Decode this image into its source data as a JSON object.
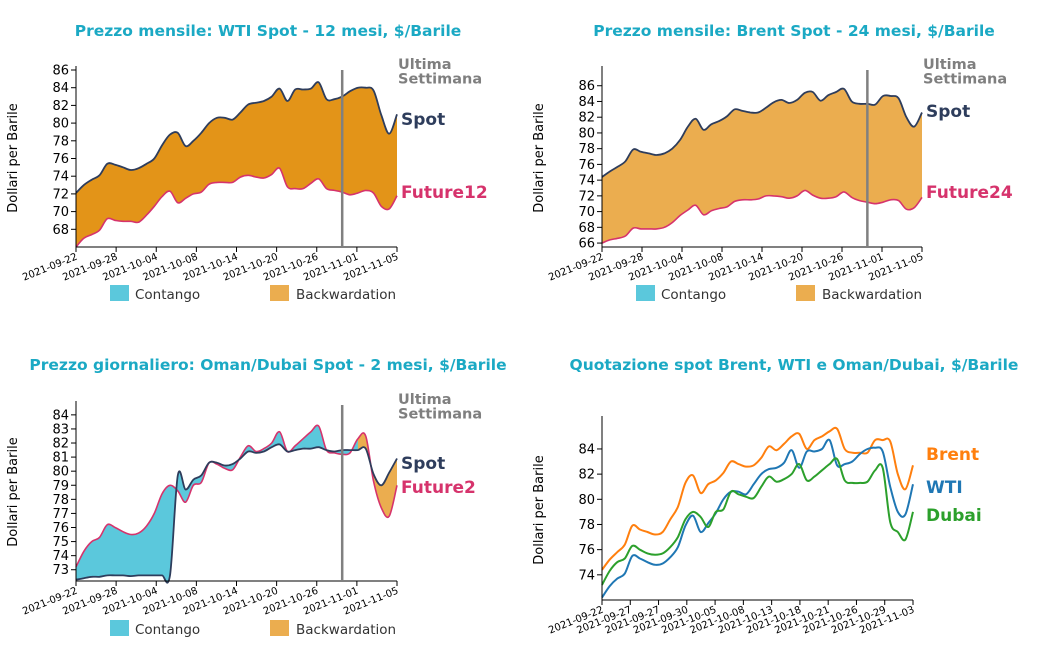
{
  "colors": {
    "title": "#1BA9C4",
    "spot": "#2E3D5C",
    "future": "#D6336C",
    "contango": "#5BC8DC",
    "backwardation_dark": "#E39418",
    "backwardation_light": "#EBAD4F",
    "legend_backwardation": "#EBAD4F",
    "week_line": "#808080",
    "brent": "#FF7F0E",
    "wti": "#1F77B4",
    "dubai": "#2CA02C"
  },
  "chart_data": [
    {
      "id": "wti",
      "type": "area",
      "title": "Prezzo mensile: WTI Spot - 12 mesi, $/Barile",
      "ylabel": "Dollari per Barile",
      "ylim": [
        66,
        86
      ],
      "yticks": [
        68,
        70,
        72,
        74,
        76,
        78,
        80,
        82,
        84,
        86
      ],
      "x_tick_labels": [
        "2021-09-22",
        "2021-09-28",
        "2021-10-04",
        "2021-10-08",
        "2021-10-14",
        "2021-10-20",
        "2021-10-26",
        "2021-11-01",
        "2021-11-05"
      ],
      "annotation": "Ultima\nSettimana",
      "week_marker_index": 34,
      "spot_label": "Spot",
      "future_label": "Future12",
      "legend": [
        "Contango",
        "Backwardation"
      ],
      "spot": [
        72.1,
        73.0,
        73.6,
        74.1,
        75.4,
        75.3,
        75.0,
        74.7,
        74.9,
        75.4,
        76.0,
        77.5,
        78.7,
        78.9,
        77.4,
        78.0,
        78.9,
        80.0,
        80.6,
        80.6,
        80.4,
        81.2,
        82.1,
        82.3,
        82.5,
        83.0,
        83.9,
        82.5,
        83.8,
        83.8,
        83.9,
        84.6,
        82.7,
        82.7,
        83.0,
        83.6,
        84.0,
        84.0,
        83.7,
        80.9,
        78.8,
        81.0
      ],
      "future12": [
        66.0,
        67.0,
        67.4,
        67.9,
        69.2,
        69.0,
        68.9,
        68.9,
        68.8,
        69.6,
        70.6,
        71.7,
        72.3,
        71.0,
        71.5,
        72.0,
        72.2,
        73.1,
        73.3,
        73.3,
        73.3,
        73.9,
        74.1,
        73.9,
        73.8,
        74.2,
        74.9,
        72.8,
        72.6,
        72.6,
        73.2,
        73.7,
        72.6,
        72.4,
        72.2,
        71.9,
        72.1,
        72.4,
        72.1,
        70.6,
        70.3,
        71.8
      ]
    },
    {
      "id": "brent",
      "type": "area",
      "title": "Prezzo mensile: Brent Spot - 24 mesi, $/Barile",
      "ylabel": "Dollari per Barile",
      "ylim": [
        65.5,
        88
      ],
      "yticks": [
        66,
        68,
        70,
        72,
        74,
        76,
        78,
        80,
        82,
        84,
        86
      ],
      "x_tick_labels": [
        "2021-09-22",
        "2021-09-28",
        "2021-10-04",
        "2021-10-08",
        "2021-10-14",
        "2021-10-20",
        "2021-10-26",
        "2021-11-01",
        "2021-11-05"
      ],
      "annotation": "Ultima\nSettimana",
      "week_marker_index": 34,
      "spot_label": "Spot",
      "future_label": "Future24",
      "legend": [
        "Contango",
        "Backwardation"
      ],
      "spot": [
        74.4,
        75.1,
        75.7,
        76.4,
        77.9,
        77.6,
        77.4,
        77.2,
        77.4,
        78.0,
        79.1,
        80.8,
        81.8,
        80.4,
        81.1,
        81.5,
        82.1,
        83.0,
        82.8,
        82.6,
        82.6,
        83.2,
        83.9,
        84.2,
        83.8,
        84.2,
        85.1,
        85.2,
        84.1,
        84.8,
        85.2,
        85.6,
        84.0,
        83.7,
        83.7,
        83.6,
        84.7,
        84.7,
        84.4,
        82.0,
        80.8,
        82.6
      ],
      "future24": [
        66.0,
        66.4,
        66.6,
        66.9,
        67.9,
        67.8,
        67.8,
        67.8,
        68.0,
        68.6,
        69.5,
        70.2,
        70.8,
        69.6,
        70.1,
        70.4,
        70.6,
        71.3,
        71.5,
        71.5,
        71.6,
        72.0,
        72.0,
        71.9,
        71.7,
        72.0,
        72.7,
        72.1,
        71.7,
        71.7,
        71.9,
        72.5,
        71.8,
        71.4,
        71.2,
        71.0,
        71.2,
        71.5,
        71.4,
        70.3,
        70.5,
        71.8
      ]
    },
    {
      "id": "oman",
      "type": "area",
      "title": "Prezzo giornaliero: Oman/Dubai Spot - 2 mesi, $/Barile",
      "ylabel": "Dollari per Barile",
      "ylim": [
        72.2,
        84.7
      ],
      "yticks": [
        73,
        74,
        75,
        76,
        77,
        78,
        79,
        80,
        81,
        82,
        83,
        84
      ],
      "x_tick_labels": [
        "2021-09-22",
        "2021-09-28",
        "2021-10-04",
        "2021-10-08",
        "2021-10-14",
        "2021-10-20",
        "2021-10-26",
        "2021-11-01",
        "2021-11-05"
      ],
      "annotation": "Ultima\nSettimana",
      "week_marker_index": 34,
      "spot_label": "Spot",
      "future_label": "Future2",
      "legend": [
        "Contango",
        "Backwardation"
      ],
      "spot": [
        72.3,
        72.4,
        72.5,
        72.5,
        72.6,
        72.6,
        72.6,
        72.55,
        72.6,
        72.6,
        72.6,
        72.6,
        72.6,
        79.7,
        78.7,
        79.4,
        79.7,
        80.6,
        80.6,
        80.4,
        80.5,
        80.9,
        81.4,
        81.3,
        81.4,
        81.7,
        81.9,
        81.4,
        81.5,
        81.6,
        81.6,
        81.7,
        81.5,
        81.4,
        81.5,
        81.5,
        81.5,
        81.6,
        79.8,
        79.0,
        79.9,
        80.9
      ],
      "future2": [
        73.2,
        74.3,
        75.0,
        75.3,
        76.2,
        76.0,
        75.7,
        75.5,
        75.6,
        76.1,
        77.0,
        78.4,
        79.0,
        78.6,
        77.8,
        79.0,
        79.2,
        80.6,
        80.5,
        80.2,
        80.1,
        81.0,
        81.8,
        81.4,
        81.6,
        82.0,
        82.8,
        81.4,
        81.8,
        82.3,
        82.8,
        83.2,
        81.5,
        81.3,
        81.2,
        81.3,
        82.3,
        82.5,
        79.3,
        77.4,
        76.8,
        79.0
      ]
    },
    {
      "id": "spot-compare",
      "type": "line",
      "title": "Quotazione spot Brent, WTI e Oman/Dubai, $/Barile",
      "ylabel": "Dollari per Barile",
      "ylim": [
        72,
        86.3
      ],
      "yticks": [
        74,
        76,
        78,
        80,
        82,
        84
      ],
      "x_tick_labels": [
        "2021-09-22",
        "2021-09-27",
        "2021-09-27",
        "2021-09-30",
        "2021-10-05",
        "2021-10-08",
        "2021-10-13",
        "2021-10-18",
        "2021-10-21",
        "2021-10-26",
        "2021-10-29",
        "2021-11-03"
      ],
      "series": [
        {
          "name": "Brent",
          "values": [
            74.4,
            75.2,
            75.8,
            76.4,
            77.9,
            77.6,
            77.4,
            77.2,
            77.4,
            78.4,
            79.4,
            81.3,
            81.9,
            80.5,
            81.2,
            81.5,
            82.1,
            83.0,
            82.8,
            82.6,
            82.7,
            83.3,
            84.2,
            83.9,
            84.4,
            85.0,
            85.2,
            84.0,
            84.7,
            85.0,
            85.4,
            85.6,
            84.0,
            83.7,
            83.7,
            83.7,
            84.7,
            84.7,
            84.6,
            82.0,
            80.8,
            82.7
          ]
        },
        {
          "name": "WTI",
          "values": [
            72.2,
            73.1,
            73.7,
            74.1,
            75.5,
            75.3,
            75.0,
            74.8,
            74.9,
            75.4,
            76.2,
            77.9,
            78.7,
            77.4,
            78.1,
            78.9,
            80.0,
            80.6,
            80.6,
            80.4,
            81.2,
            82.0,
            82.4,
            82.5,
            82.9,
            83.9,
            82.5,
            83.8,
            83.8,
            84.0,
            84.7,
            82.7,
            82.8,
            83.0,
            83.6,
            84.0,
            84.1,
            83.8,
            81.0,
            79.0,
            78.8,
            81.2
          ]
        },
        {
          "name": "Dubai",
          "values": [
            73.2,
            74.3,
            75.0,
            75.3,
            76.3,
            76.0,
            75.7,
            75.6,
            75.7,
            76.2,
            77.0,
            78.4,
            79.0,
            78.6,
            77.8,
            79.0,
            79.2,
            80.6,
            80.4,
            80.2,
            80.1,
            81.0,
            81.8,
            81.4,
            81.6,
            82.0,
            82.8,
            81.5,
            81.8,
            82.3,
            82.8,
            83.2,
            81.5,
            81.3,
            81.3,
            81.4,
            82.3,
            82.5,
            78.2,
            77.4,
            76.8,
            79.0
          ]
        }
      ]
    }
  ]
}
